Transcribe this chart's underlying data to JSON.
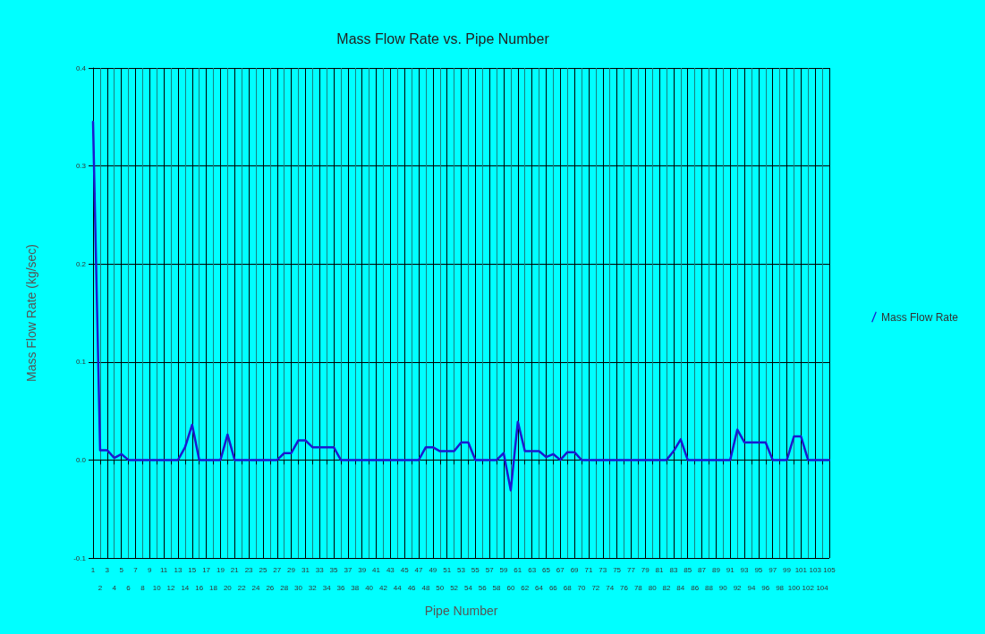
{
  "chart_data": {
    "type": "line",
    "title": "Mass Flow Rate vs. Pipe Number",
    "xlabel": "Pipe Number",
    "ylabel": "Mass Flow Rate (kg/sec)",
    "categories": [
      "1",
      "2",
      "3",
      "4",
      "5",
      "6",
      "7",
      "8",
      "9",
      "10",
      "11",
      "12",
      "13",
      "14",
      "15",
      "16",
      "17",
      "18",
      "19",
      "20",
      "21",
      "22",
      "23",
      "24",
      "25",
      "26",
      "27",
      "28",
      "29",
      "30",
      "31",
      "32",
      "33",
      "34",
      "35",
      "36",
      "37",
      "38",
      "39",
      "40",
      "41",
      "42",
      "43",
      "44",
      "45",
      "46",
      "47",
      "48",
      "49",
      "50",
      "51",
      "52",
      "53",
      "54",
      "55",
      "56",
      "57",
      "58",
      "59",
      "60",
      "61",
      "62",
      "63",
      "64",
      "65",
      "66",
      "67",
      "68",
      "69",
      "70",
      "71",
      "72",
      "73",
      "74",
      "75",
      "76",
      "77",
      "78",
      "79",
      "80",
      "81",
      "82",
      "83",
      "84",
      "85",
      "86",
      "87",
      "88",
      "89",
      "90",
      "91",
      "92",
      "93",
      "94",
      "95",
      "96",
      "97",
      "98",
      "99",
      "100",
      "101",
      "102",
      "103",
      "104",
      "105"
    ],
    "series": [
      {
        "name": "Mass Flow Rate",
        "color": "#1a1ad0",
        "values": [
          0.345,
          0.01,
          0.01,
          0.002,
          0.006,
          0,
          0,
          0,
          0,
          0,
          0,
          0,
          0,
          0.013,
          0.036,
          0,
          0,
          0,
          0,
          0.026,
          0,
          0,
          0,
          0,
          0,
          0,
          0,
          0.007,
          0.007,
          0.02,
          0.02,
          0.013,
          0.013,
          0.013,
          0.013,
          0,
          0,
          0,
          0,
          0,
          0,
          0,
          0,
          0,
          0,
          0,
          0,
          0.013,
          0.013,
          0.009,
          0.009,
          0.009,
          0.018,
          0.018,
          0,
          0,
          0,
          0,
          0.007,
          -0.031,
          0.039,
          0.009,
          0.009,
          0.009,
          0.003,
          0.006,
          0,
          0.008,
          0.008,
          0,
          0,
          0,
          0,
          0,
          0,
          0,
          0,
          0,
          0,
          0,
          0,
          0,
          0.009,
          0.021,
          0,
          0,
          0,
          0,
          0,
          0,
          0,
          0.031,
          0.018,
          0.018,
          0.018,
          0.018,
          0,
          0,
          0,
          0.024,
          0.024,
          0,
          0,
          0,
          0
        ]
      }
    ],
    "ylim": [
      -0.1,
      0.4
    ],
    "yticks": [
      -0.1,
      {
        "value": 0,
        "label": "0.0"
      },
      0.1,
      0.2,
      0.3,
      0.4
    ],
    "grid": true,
    "legend": "right",
    "marker": "none",
    "line_style": "solid"
  }
}
